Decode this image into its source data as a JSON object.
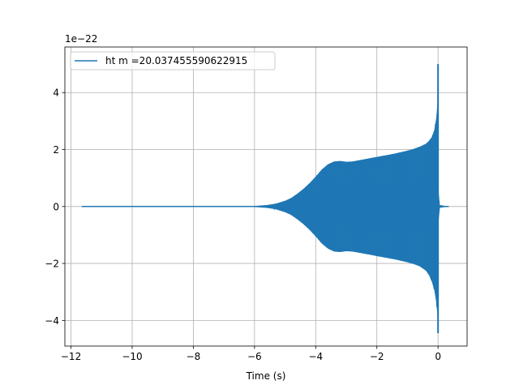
{
  "chart_data": {
    "type": "line",
    "title": "",
    "xlabel": "Time (s)",
    "ylabel": "",
    "y_offset_label": "1e−22",
    "xlim": [
      -12.2,
      0.95
    ],
    "ylim": [
      -4.9,
      5.6
    ],
    "xticks": [
      -12,
      -10,
      -8,
      -6,
      -4,
      -2,
      0
    ],
    "xtick_labels": [
      "−12",
      "−10",
      "−8",
      "−6",
      "−4",
      "−2",
      "0"
    ],
    "yticks": [
      -4,
      -2,
      0,
      2,
      4
    ],
    "ytick_labels": [
      "−4",
      "−2",
      "0",
      "2",
      "4"
    ],
    "grid": true,
    "legend": {
      "position": "top-left"
    },
    "series": [
      {
        "name": "ht m =20.037455590622915",
        "color": "#1f77b4",
        "x_start": -11.65,
        "x_end": 0.35,
        "envelope": {
          "x": [
            -11.65,
            -6.5,
            -6.0,
            -5.6,
            -5.3,
            -5.0,
            -4.8,
            -4.6,
            -4.4,
            -4.2,
            -4.0,
            -3.8,
            -3.6,
            -3.4,
            -3.2,
            -3.0,
            -2.8,
            -2.6,
            -2.4,
            -2.2,
            -2.0,
            -1.8,
            -1.6,
            -1.4,
            -1.2,
            -1.0,
            -0.8,
            -0.6,
            -0.4,
            -0.3,
            -0.2,
            -0.12,
            -0.06,
            -0.02,
            0.0,
            0.02,
            0.06,
            0.35
          ],
          "upper": [
            0.0,
            0.0,
            0.02,
            0.05,
            0.1,
            0.2,
            0.3,
            0.45,
            0.62,
            0.82,
            1.05,
            1.3,
            1.48,
            1.58,
            1.6,
            1.57,
            1.58,
            1.62,
            1.66,
            1.7,
            1.74,
            1.78,
            1.82,
            1.86,
            1.91,
            1.96,
            2.02,
            2.1,
            2.2,
            2.3,
            2.45,
            2.7,
            3.1,
            3.6,
            5.0,
            0.5,
            0.05,
            0.0
          ],
          "lower": [
            0.0,
            0.0,
            -0.02,
            -0.05,
            -0.1,
            -0.2,
            -0.3,
            -0.45,
            -0.62,
            -0.82,
            -1.05,
            -1.3,
            -1.48,
            -1.58,
            -1.6,
            -1.57,
            -1.58,
            -1.62,
            -1.66,
            -1.7,
            -1.74,
            -1.78,
            -1.82,
            -1.86,
            -1.91,
            -1.96,
            -2.02,
            -2.1,
            -2.25,
            -2.4,
            -2.65,
            -2.95,
            -3.35,
            -3.8,
            -4.45,
            -0.5,
            -0.05,
            0.0
          ]
        }
      }
    ]
  }
}
